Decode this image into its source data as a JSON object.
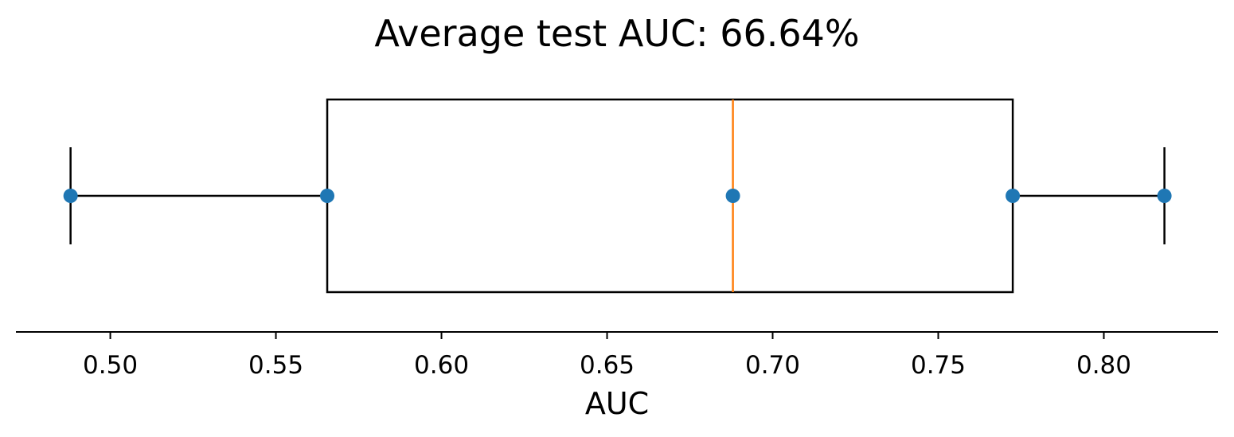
{
  "chart_data": {
    "type": "box",
    "orientation": "horizontal",
    "title": "Average test AUC: 66.64%",
    "xlabel": "AUC",
    "ylabel": "",
    "xlim": [
      0.4715,
      0.8345
    ],
    "xticks": [
      0.5,
      0.55,
      0.6,
      0.65,
      0.7,
      0.75,
      0.8
    ],
    "xtick_labels": [
      "0.50",
      "0.55",
      "0.60",
      "0.65",
      "0.70",
      "0.75",
      "0.80"
    ],
    "box": {
      "whisker_low": 0.488,
      "q1": 0.5655,
      "median": 0.688,
      "q3": 0.7725,
      "whisker_high": 0.8183
    },
    "points": [
      0.488,
      0.5655,
      0.688,
      0.7725,
      0.8183
    ],
    "grid": false,
    "colors": {
      "box": "#000000",
      "median": "#ff7f0e",
      "points": "#1f77b4"
    }
  }
}
